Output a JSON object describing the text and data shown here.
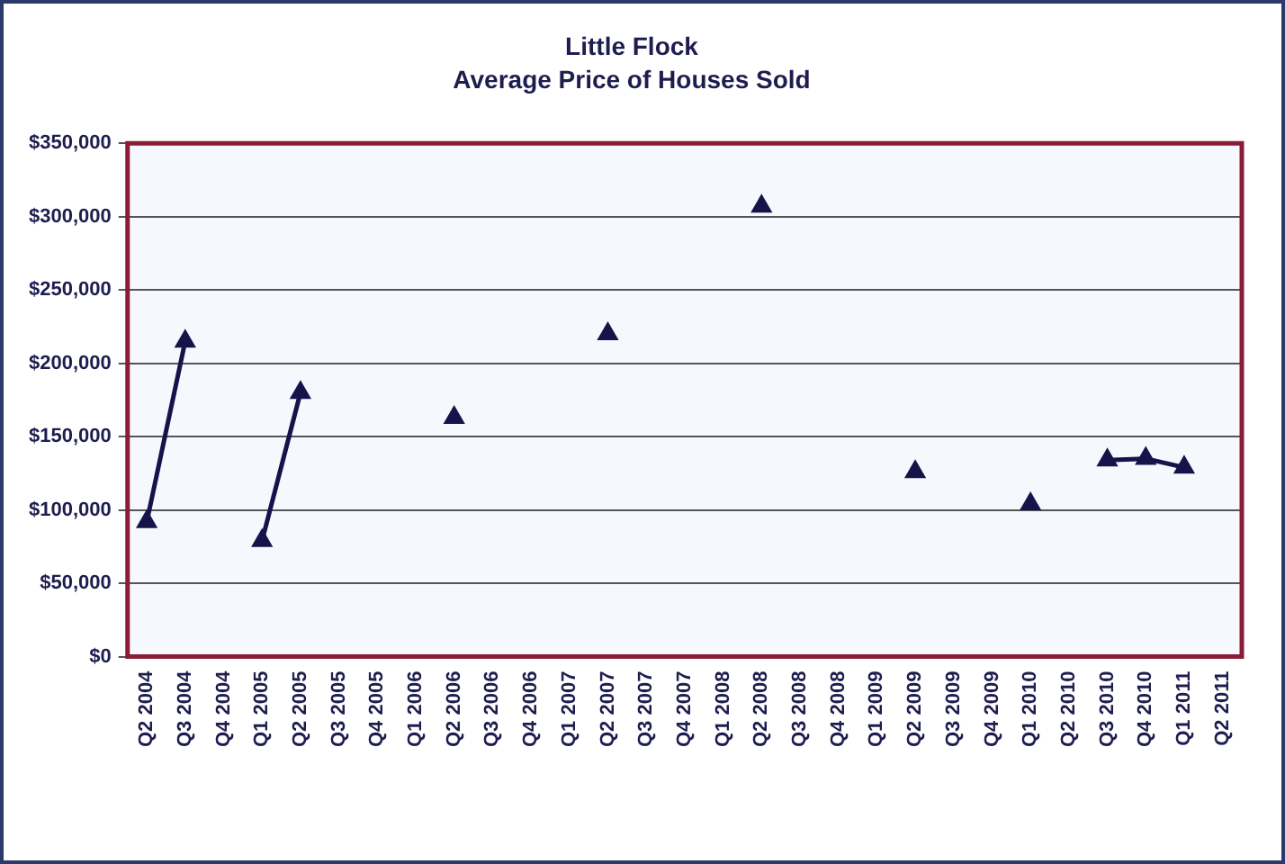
{
  "chart_data": {
    "type": "line",
    "title": "Little Flock",
    "subtitle": "Average Price of Houses Sold",
    "categories": [
      "Q2 2004",
      "Q3 2004",
      "Q4 2004",
      "Q1 2005",
      "Q2 2005",
      "Q3 2005",
      "Q4 2005",
      "Q1 2006",
      "Q2 2006",
      "Q3 2006",
      "Q4 2006",
      "Q1 2007",
      "Q2 2007",
      "Q3 2007",
      "Q4 2007",
      "Q1 2008",
      "Q2 2008",
      "Q3 2008",
      "Q4 2008",
      "Q1 2009",
      "Q2 2009",
      "Q3 2009",
      "Q4 2009",
      "Q1 2010",
      "Q2 2010",
      "Q3 2010",
      "Q4 2010",
      "Q1 2011",
      "Q2 2011"
    ],
    "series": [
      {
        "color": "#15134a",
        "values": [
          92000,
          215000,
          null,
          79000,
          180000,
          null,
          null,
          null,
          163000,
          null,
          null,
          null,
          220000,
          null,
          null,
          null,
          307000,
          null,
          null,
          null,
          126000,
          null,
          null,
          104000,
          null,
          134000,
          135000,
          129000,
          null
        ]
      }
    ],
    "ylim": [
      0,
      350000
    ],
    "yticks": [
      {
        "value": 0,
        "label": "$0"
      },
      {
        "value": 50000,
        "label": "$50,000"
      },
      {
        "value": 100000,
        "label": "$100,000"
      },
      {
        "value": 150000,
        "label": "$150,000"
      },
      {
        "value": 200000,
        "label": "$200,000"
      },
      {
        "value": 250000,
        "label": "$250,000"
      },
      {
        "value": 300000,
        "label": "$300,000"
      },
      {
        "value": 350000,
        "label": "$350,000"
      }
    ],
    "grid": "y",
    "legend": false,
    "marker": "triangle",
    "line_style": "solid"
  }
}
